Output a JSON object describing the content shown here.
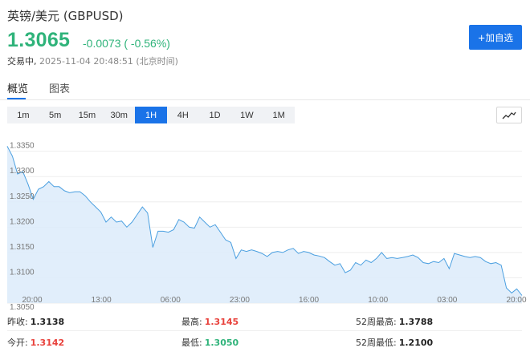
{
  "header": {
    "title": "英镑/美元  (GBPUSD)",
    "price": "1.3065",
    "change": "-0.0073 ( -0.56%)",
    "state": "交易中,",
    "timestamp": "2025-11-04 20:48:51 (北京时间)",
    "add_button": "+加自选"
  },
  "tabs": [
    {
      "label": "概览",
      "active": true
    },
    {
      "label": "图表",
      "active": false
    }
  ],
  "intervals": [
    "1m",
    "5m",
    "15m",
    "30m",
    "1H",
    "4H",
    "1D",
    "1W",
    "1M"
  ],
  "active_interval": "1H",
  "chart_type_icon": "line-chart-icon",
  "colors": {
    "up": "#2fb37a",
    "down": "#e8413b",
    "accent": "#1a73e8",
    "line": "#4a9fe0",
    "area": "#dcebfa"
  },
  "chart_data": {
    "type": "area",
    "title": "",
    "xlabel": "",
    "ylabel": "",
    "ylim": [
      1.305,
      1.337
    ],
    "yticks": [
      "1.3350",
      "1.3300",
      "1.3250",
      "1.3200",
      "1.3150",
      "1.3100",
      "1.3050"
    ],
    "xticks": [
      "20:00",
      "13:00",
      "06:00",
      "23:00",
      "16:00",
      "10:00",
      "03:00",
      "20:00"
    ],
    "grid": true,
    "series": [
      {
        "values": [
          1.336,
          1.334,
          1.3305,
          1.331,
          1.3285,
          1.3255,
          1.3275,
          1.328,
          1.329,
          1.328,
          1.328,
          1.3272,
          1.3268,
          1.327,
          1.327,
          1.3262,
          1.325,
          1.324,
          1.323,
          1.321,
          1.322,
          1.321,
          1.3212,
          1.32,
          1.321,
          1.3225,
          1.324,
          1.3228,
          1.316,
          1.3192,
          1.3192,
          1.319,
          1.3195,
          1.3215,
          1.321,
          1.32,
          1.3198,
          1.322,
          1.321,
          1.32,
          1.3205,
          1.319,
          1.3175,
          1.317,
          1.3138,
          1.3155,
          1.3152,
          1.3155,
          1.3152,
          1.3148,
          1.3142,
          1.315,
          1.3152,
          1.315,
          1.3155,
          1.3158,
          1.3148,
          1.3152,
          1.315,
          1.3145,
          1.3143,
          1.314,
          1.3132,
          1.3125,
          1.3128,
          1.311,
          1.3115,
          1.313,
          1.3125,
          1.3135,
          1.313,
          1.3138,
          1.315,
          1.3138,
          1.314,
          1.3138,
          1.314,
          1.3142,
          1.3145,
          1.314,
          1.313,
          1.3128,
          1.3132,
          1.313,
          1.3138,
          1.3118,
          1.3148,
          1.3145,
          1.3142,
          1.314,
          1.3142,
          1.314,
          1.3132,
          1.3128,
          1.313,
          1.3125,
          1.308,
          1.307,
          1.3078,
          1.3065
        ]
      }
    ]
  },
  "stats": {
    "prev_close_label": "昨收:",
    "prev_close": "1.3138",
    "high_label": "最高:",
    "high": "1.3145",
    "high52_label": "52周最高:",
    "high52": "1.3788",
    "open_label": "今开:",
    "open": "1.3142",
    "low_label": "最低:",
    "low": "1.3050",
    "low52_label": "52周最低:",
    "low52": "1.2100"
  }
}
